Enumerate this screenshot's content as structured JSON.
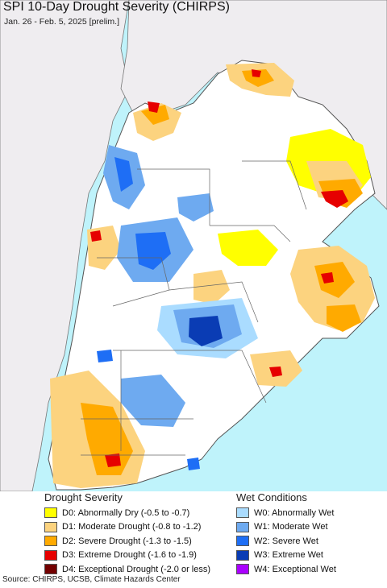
{
  "header": {
    "title": "SPI 10-Day Drought Severity (CHIRPS)",
    "subtitle": "Jan. 26 - Feb. 5, 2025 [prelim.]"
  },
  "colors": {
    "ocean": "#bff3fb",
    "land_other": "#efedf0",
    "land_normal": "#ffffff",
    "border": "#555555"
  },
  "legend": {
    "drought": {
      "heading": "Drought Severity",
      "items": [
        {
          "label": "D0: Abnormally Dry (-0.5 to -0.7)",
          "color": "#ffff00"
        },
        {
          "label": "D1: Moderate Drought (-0.8 to -1.2)",
          "color": "#fcd37f"
        },
        {
          "label": "D2: Severe Drought (-1.3 to -1.5)",
          "color": "#ffaa00"
        },
        {
          "label": "D3: Extreme Drought (-1.6 to -1.9)",
          "color": "#e60000"
        },
        {
          "label": "D4: Exceptional Drought (-2.0 or less)",
          "color": "#730000"
        }
      ]
    },
    "wet": {
      "heading": "Wet Conditions",
      "items": [
        {
          "label": "W0: Abnormally Wet",
          "color": "#aadcff"
        },
        {
          "label": "W1: Moderate Wet",
          "color": "#6eaaf0"
        },
        {
          "label": "W2: Severe Wet",
          "color": "#1e6ef5"
        },
        {
          "label": "W3: Extreme Wet",
          "color": "#0a3cb4"
        },
        {
          "label": "W4: Exceptional Wet",
          "color": "#aa00ff"
        }
      ]
    }
  },
  "footer": {
    "source": "Source: CHIRPS, UCSB, Climate Hazards Center"
  }
}
